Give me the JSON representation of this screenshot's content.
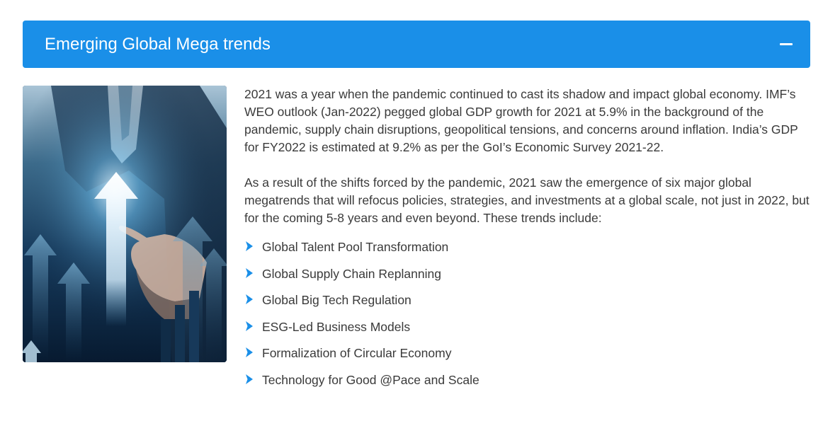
{
  "accordion": {
    "title": "Emerging Global Mega trends",
    "toggle_icon": "minus-icon",
    "accent_color": "#1a8fe8"
  },
  "image": {
    "icon": "rising-arrows-business-image"
  },
  "content": {
    "paragraph_1": "2021 was a year when the pandemic continued to cast its shadow and impact global economy. IMF’s WEO outlook (Jan-2022) pegged global GDP growth for 2021 at 5.9% in the background of the pandemic, supply chain disruptions, geopolitical tensions, and concerns around inflation. India’s GDP for FY2022 is estimated at 9.2% as per the GoI’s Economic Survey 2021-22.",
    "paragraph_2": "As a result of the shifts forced by the pandemic, 2021 saw the emergence of six major global megatrends that will refocus policies, strategies, and investments at a global scale, not just in 2022, but for the coming 5-8 years and even beyond. These trends include:",
    "bullet_icon": "chevron-right-icon",
    "trends": [
      "Global Talent Pool Transformation",
      "Global Supply Chain Replanning",
      "Global Big Tech Regulation",
      "ESG-Led Business Models",
      "Formalization of Circular Economy",
      "Technology for Good @Pace and Scale"
    ]
  }
}
